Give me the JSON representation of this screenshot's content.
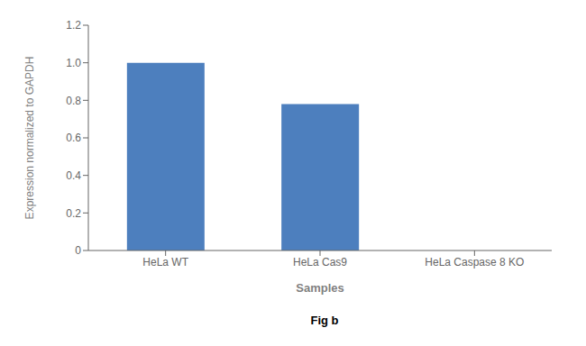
{
  "chart_data": {
    "type": "bar",
    "categories": [
      "HeLa WT",
      "HeLa Cas9",
      "HeLa Caspase 8 KO"
    ],
    "values": [
      1.0,
      0.78,
      0.0
    ],
    "color": "#4d7fbe",
    "xlabel": "Samples",
    "ylabel": "Expression normalized to GAPDH",
    "ylim": [
      0,
      1.2
    ],
    "yticks": [
      0,
      0.2,
      0.4,
      0.6,
      0.8,
      {
        "value": 1.0,
        "label": "1.0"
      },
      1.2
    ],
    "grid": false,
    "annotations": [
      "Fig b"
    ]
  }
}
